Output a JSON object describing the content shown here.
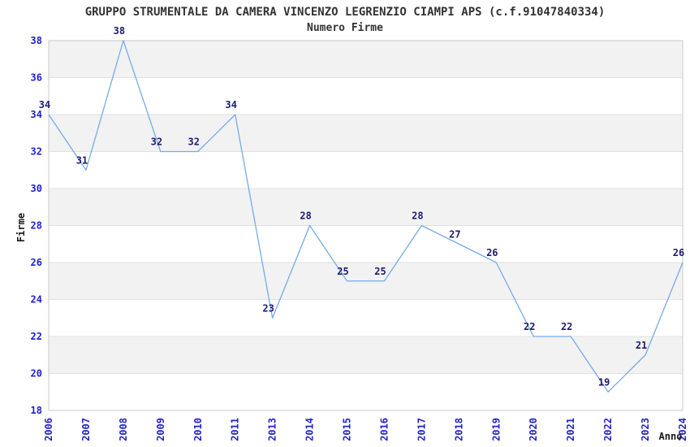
{
  "title": "GRUPPO STRUMENTALE DA CAMERA VINCENZO LEGRENZIO CIAMPI APS (c.f.91047840334)",
  "subtitle": "Numero Firme",
  "chart_data": {
    "type": "line",
    "categories": [
      "2006",
      "2007",
      "2008",
      "2009",
      "2010",
      "2011",
      "2013",
      "2014",
      "2015",
      "2016",
      "2017",
      "2018",
      "2019",
      "2020",
      "2021",
      "2022",
      "2023",
      "2024"
    ],
    "values": [
      34,
      31,
      38,
      32,
      32,
      34,
      23,
      28,
      25,
      25,
      28,
      27,
      26,
      22,
      22,
      19,
      21,
      26
    ],
    "title": "GRUPPO STRUMENTALE DA CAMERA VINCENZO LEGRENZIO CIAMPI APS (c.f.91047840334)",
    "subtitle": "Numero Firme",
    "xlabel": "Anno",
    "ylabel": "Firme",
    "ylim": [
      18,
      38
    ],
    "ytick_step": 2,
    "yticks": [
      18,
      20,
      22,
      24,
      26,
      28,
      30,
      32,
      34,
      36,
      38
    ],
    "grid": "horizontal-bands-alternating",
    "legend": "none",
    "point_labels_shown": true,
    "colors": {
      "line": "#74ABE8",
      "tick_label": "#2222CC",
      "data_label": "#1C1C6E",
      "band_fill": "#F2F2F2",
      "gridline": "#E0E0E0",
      "frame": "#C9C9C9",
      "title_text": "#333333",
      "background": "#FFFFFF"
    }
  }
}
